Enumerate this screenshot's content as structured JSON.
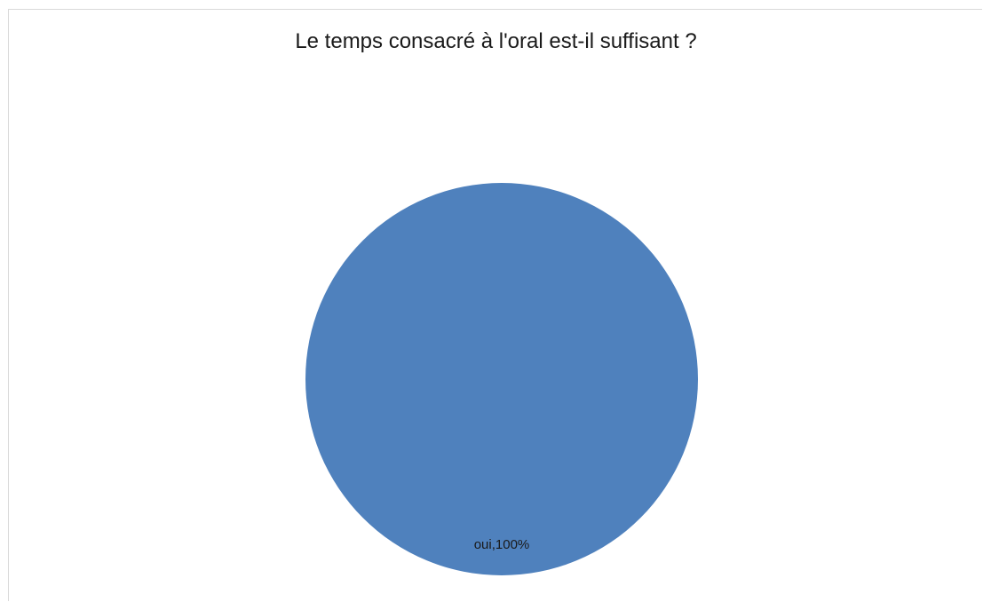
{
  "chart_data": {
    "type": "pie",
    "title": "Le temps consacré à l'oral est-il suffisant ?",
    "slices": [
      {
        "label": "oui",
        "value": 100,
        "percent_label": "oui,100%",
        "color": "#4f81bd"
      }
    ]
  }
}
